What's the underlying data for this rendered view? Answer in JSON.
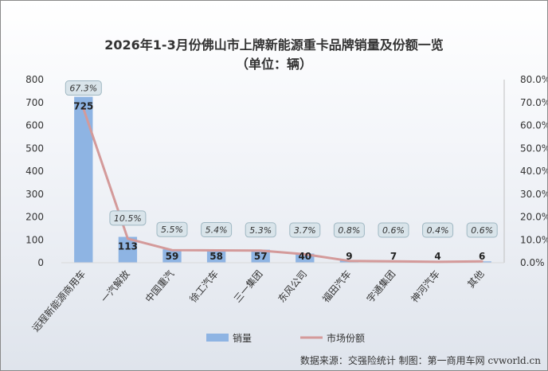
{
  "title": {
    "line1": "2026年1-3月份佛山市上牌新能源重卡品牌销量及份额一览",
    "line2": "（单位：辆）"
  },
  "source": "数据来源：交强险统计  制图：第一商用车网 cvworld.cn",
  "colors": {
    "bar": "#8eb4e3",
    "line": "#d49a9a",
    "label_box": "#d9e4ea"
  },
  "chart_data": {
    "type": "bar",
    "categories": [
      "远程新能源商用车",
      "一汽解放",
      "中国重汽",
      "徐工汽车",
      "三一集团",
      "东风公司",
      "福田汽车",
      "宇通集团",
      "神河汽车",
      "其他"
    ],
    "series": [
      {
        "name": "销量",
        "type": "bar",
        "axis": "left",
        "values": [
          725,
          113,
          59,
          58,
          57,
          40,
          9,
          7,
          4,
          6
        ]
      },
      {
        "name": "市场份额",
        "type": "line",
        "axis": "right",
        "values": [
          67.3,
          10.5,
          5.5,
          5.4,
          5.3,
          3.7,
          0.8,
          0.6,
          0.4,
          0.6
        ]
      }
    ],
    "share_labels": [
      "67.3%",
      "10.5%",
      "5.5%",
      "5.4%",
      "5.3%",
      "3.7%",
      "0.8%",
      "0.6%",
      "0.4%",
      "0.6%"
    ],
    "ylim_left": [
      0,
      800
    ],
    "yticks_left": [
      0,
      100,
      200,
      300,
      400,
      500,
      600,
      700,
      800
    ],
    "ylim_right": [
      0,
      80
    ],
    "yticks_right_labels": [
      "0.0%",
      "10.0%",
      "20.0%",
      "30.0%",
      "40.0%",
      "50.0%",
      "60.0%",
      "70.0%",
      "80.0%"
    ],
    "legend_position": "bottom",
    "grid": false
  }
}
